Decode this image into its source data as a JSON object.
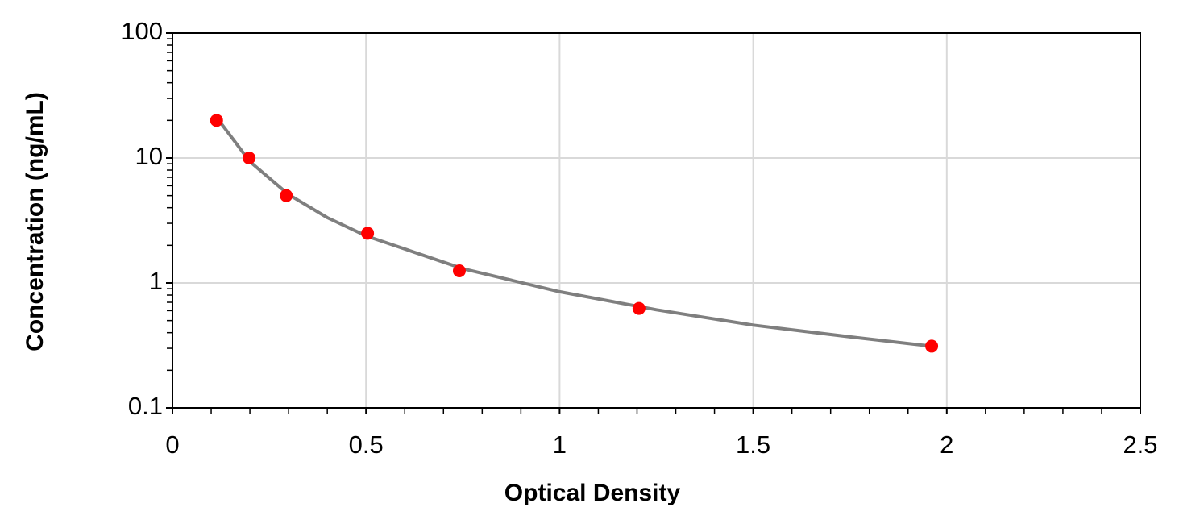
{
  "chart_data": {
    "type": "scatter",
    "log_y": true,
    "grid": true,
    "x_label": "Optical Density",
    "y_label": "Concentration (ng/mL)",
    "xlim": [
      0,
      2.5
    ],
    "xticks": [
      0,
      0.5,
      1,
      1.5,
      2,
      2.5
    ],
    "xminorticks": [
      0.1,
      0.2,
      0.3,
      0.4,
      0.6,
      0.7,
      0.8,
      0.9,
      1.1,
      1.2,
      1.3,
      1.4,
      1.6,
      1.7,
      1.8,
      1.9,
      2.1,
      2.2,
      2.3,
      2.4
    ],
    "ylim": [
      0.1,
      100
    ],
    "yticks": [
      0.1,
      1,
      10,
      100
    ],
    "yminorticks": [
      0.2,
      0.3,
      0.4,
      0.5,
      0.6,
      0.7,
      0.8,
      0.9,
      2,
      3,
      4,
      5,
      6,
      7,
      8,
      9,
      20,
      30,
      40,
      50,
      60,
      70,
      80,
      90
    ],
    "series": [
      {
        "mode": "line",
        "color": "#7f7f7f",
        "x": [
          0.12,
          0.2,
          0.3,
          0.4,
          0.5,
          0.75,
          1,
          1.25,
          1.5,
          1.75,
          1.96
        ],
        "values": [
          20,
          9.35,
          5.1,
          3.33,
          2.38,
          1.3,
          0.85,
          0.61,
          0.46,
          0.37,
          0.312
        ]
      },
      {
        "mode": "markers",
        "color": "#ff0000",
        "x": [
          0.114,
          0.198,
          0.294,
          0.504,
          0.741,
          1.205,
          1.961
        ],
        "values": [
          20,
          10,
          5,
          2.5,
          1.25,
          0.625,
          0.312
        ]
      }
    ]
  }
}
